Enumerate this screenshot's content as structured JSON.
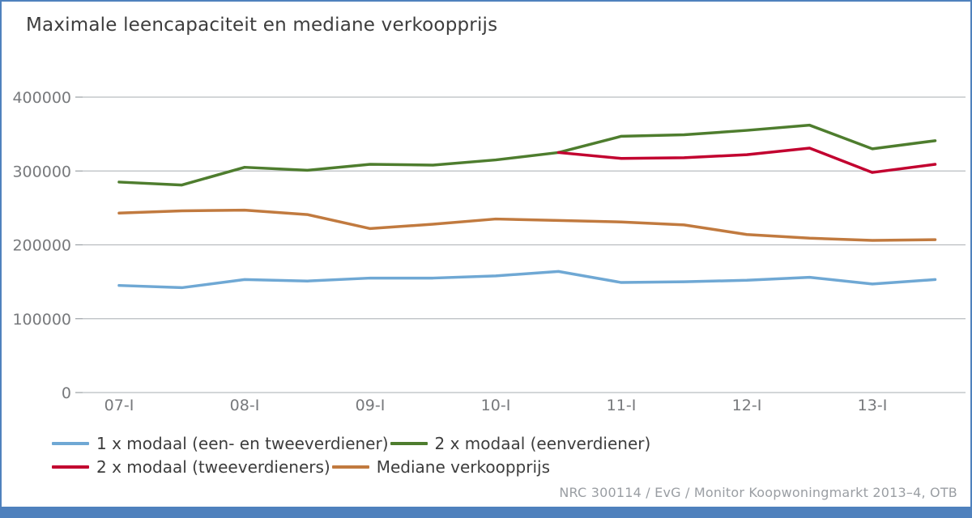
{
  "chart_data": {
    "type": "line",
    "title": "Maximale leencapaciteit en mediane verkoopprijs",
    "xlabel": "",
    "ylabel": "",
    "ylim": [
      0,
      400000
    ],
    "y_ticks": [
      0,
      100000,
      200000,
      300000,
      400000
    ],
    "grid": true,
    "legend_position": "bottom-left",
    "x": [
      "07-I",
      "07-II",
      "08-I",
      "08-II",
      "09-I",
      "09-II",
      "10-I",
      "10-II",
      "11-I",
      "11-II",
      "12-I",
      "12-II",
      "13-I",
      "13-II"
    ],
    "x_tick_labels": [
      "07-I",
      "08-I",
      "09-I",
      "10-I",
      "11-I",
      "12-I",
      "13-I"
    ],
    "series": [
      {
        "name": "1 x modaal (een- en tweeverdiener)",
        "color": "#6fa8d4",
        "values": [
          145000,
          142000,
          153000,
          151000,
          155000,
          155000,
          158000,
          164000,
          149000,
          150000,
          152000,
          156000,
          147000,
          153000
        ]
      },
      {
        "name": "2 x modaal (eenverdiener)",
        "color": "#4e7d2e",
        "values": [
          285000,
          281000,
          305000,
          301000,
          309000,
          308000,
          315000,
          325000,
          347000,
          349000,
          355000,
          362000,
          330000,
          341000
        ]
      },
      {
        "name": "2 x modaal (tweeverdieners)",
        "color": "#c2002f",
        "values": [
          null,
          null,
          null,
          null,
          null,
          null,
          null,
          325000,
          317000,
          318000,
          322000,
          331000,
          298000,
          309000
        ]
      },
      {
        "name": "Mediane verkoopprijs",
        "color": "#c17a3f",
        "values": [
          243000,
          246000,
          247000,
          241000,
          222000,
          228000,
          235000,
          233000,
          231000,
          227000,
          214000,
          209000,
          206000,
          207000
        ]
      }
    ]
  },
  "footer": {
    "credit": "NRC 300114 / EvG / Monitor Koopwoningmarkt 2013–4, OTB"
  },
  "colors": {
    "frame_border": "#4f81bd",
    "bottom_bar": "#4f81bd",
    "gridline": "#b9bdc0",
    "tick": "#9aa0a4",
    "axis_text": "#77797c",
    "title_text": "#3d3d3d",
    "legend_text": "#3d3d3d",
    "footer_text": "#9a9ea3"
  }
}
